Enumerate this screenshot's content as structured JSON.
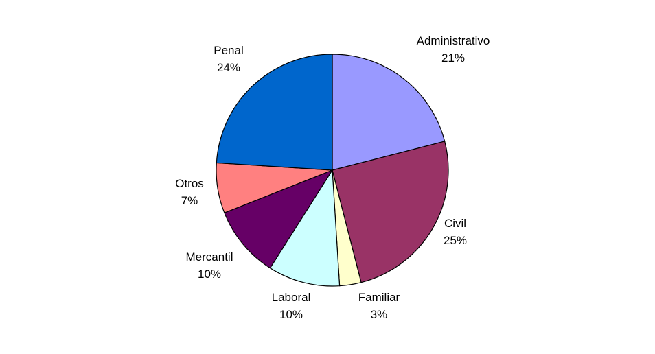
{
  "chart_data": {
    "type": "pie",
    "title": "",
    "start_angle_deg": 0,
    "direction": "clockwise",
    "slices": [
      {
        "label": "Administrativo",
        "value": 21,
        "value_label": "21%",
        "color": "#9999FF"
      },
      {
        "label": "Civil",
        "value": 25,
        "value_label": "25%",
        "color": "#993366"
      },
      {
        "label": "Familiar",
        "value": 3,
        "value_label": "3%",
        "color": "#FFFFCC"
      },
      {
        "label": "Laboral",
        "value": 10,
        "value_label": "10%",
        "color": "#CCFFFF"
      },
      {
        "label": "Mercantil",
        "value": 10,
        "value_label": "10%",
        "color": "#660066"
      },
      {
        "label": "Otros",
        "value": 7,
        "value_label": "7%",
        "color": "#FF8080"
      },
      {
        "label": "Penal",
        "value": 24,
        "value_label": "24%",
        "color": "#0066CC"
      }
    ]
  }
}
